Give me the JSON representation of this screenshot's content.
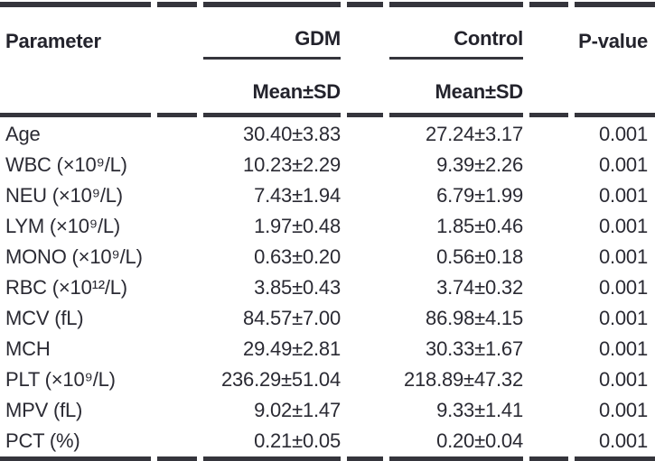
{
  "table": {
    "header": {
      "parameter": "Parameter",
      "gdm": "GDM",
      "control": "Control",
      "pvalue": "P-value",
      "gdm_sub": "Mean±SD",
      "control_sub": "Mean±SD"
    },
    "rows": [
      {
        "parameter": "Age",
        "gdm": "30.40±3.83",
        "control": "27.24±3.17",
        "pvalue": "0.001"
      },
      {
        "parameter": "WBC (×10⁹/L)",
        "gdm": "10.23±2.29",
        "control": "9.39±2.26",
        "pvalue": "0.001"
      },
      {
        "parameter": "NEU (×10⁹/L)",
        "gdm": "7.43±1.94",
        "control": "6.79±1.99",
        "pvalue": "0.001"
      },
      {
        "parameter": "LYM (×10⁹/L)",
        "gdm": "1.97±0.48",
        "control": "1.85±0.46",
        "pvalue": "0.001"
      },
      {
        "parameter": "MONO (×10⁹/L)",
        "gdm": "0.63±0.20",
        "control": "0.56±0.18",
        "pvalue": "0.001"
      },
      {
        "parameter": "RBC (×10¹²/L)",
        "gdm": "3.85±0.43",
        "control": "3.74±0.32",
        "pvalue": "0.001"
      },
      {
        "parameter": "MCV (fL)",
        "gdm": "84.57±7.00",
        "control": "86.98±4.15",
        "pvalue": "0.001"
      },
      {
        "parameter": "MCH",
        "gdm": "29.49±2.81",
        "control": "30.33±1.67",
        "pvalue": "0.001"
      },
      {
        "parameter": "PLT (×10⁹/L)",
        "gdm": "236.29±51.04",
        "control": "218.89±47.32",
        "pvalue": "0.001"
      },
      {
        "parameter": "MPV (fL)",
        "gdm": "9.02±1.47",
        "control": "9.33±1.41",
        "pvalue": "0.001"
      },
      {
        "parameter": "PCT (%)",
        "gdm": "0.21±0.05",
        "control": "0.20±0.04",
        "pvalue": "0.001"
      }
    ],
    "colors": {
      "text": "#2a2a33",
      "rule": "#35353c"
    }
  }
}
